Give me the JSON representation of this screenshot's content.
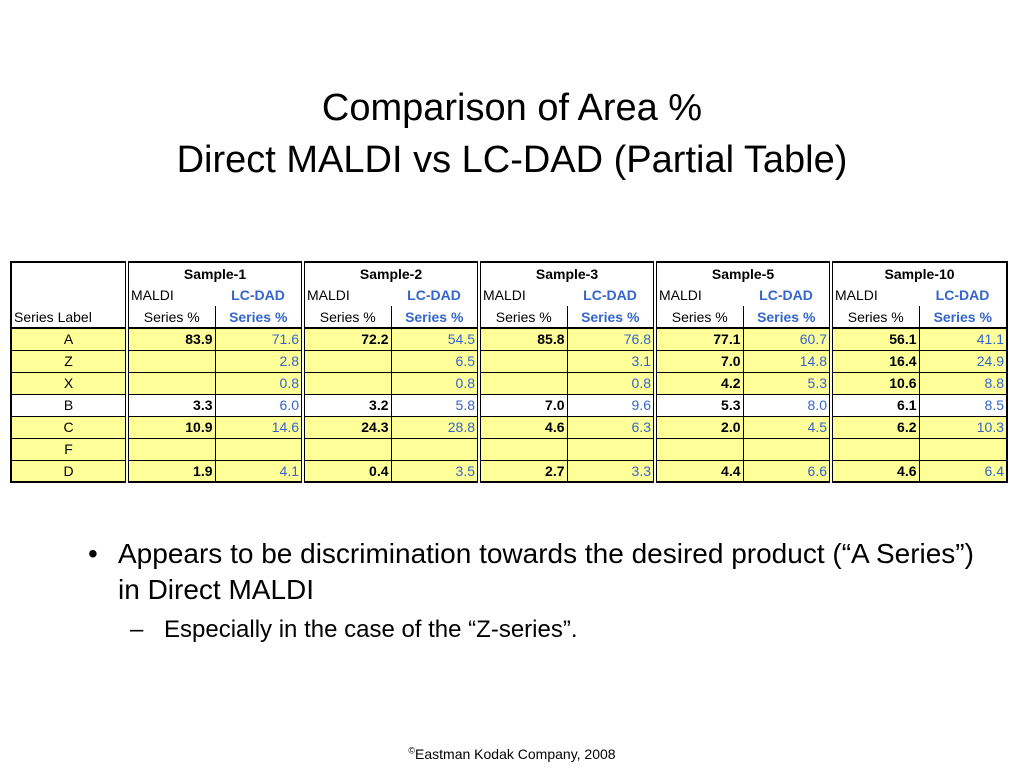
{
  "slide": {
    "title_line1": "Comparison of Area %",
    "title_line2": "Direct MALDI vs LC-DAD (Partial Table)"
  },
  "table": {
    "samples": [
      "Sample-1",
      "Sample-2",
      "Sample-3",
      "Sample-5",
      "Sample-10"
    ],
    "method_maldi": "MALDI",
    "method_lcdad": "LC-DAD",
    "series_header": "Series Label",
    "series_pct": "Series %",
    "colors": {
      "row_highlight": "#ffff99",
      "lc_text": "#3366cc"
    },
    "rows": [
      {
        "label": "A",
        "highlight": true,
        "values": [
          "83.9",
          "71.6",
          "72.2",
          "54.5",
          "85.8",
          "76.8",
          "77.1",
          "60.7",
          "56.1",
          "41.1"
        ]
      },
      {
        "label": "Z",
        "highlight": true,
        "values": [
          "",
          "2.8",
          "",
          "6.5",
          "",
          "3.1",
          "7.0",
          "14.8",
          "16.4",
          "24.9"
        ]
      },
      {
        "label": "X",
        "highlight": true,
        "values": [
          "",
          "0.8",
          "",
          "0.8",
          "",
          "0.8",
          "4.2",
          "5.3",
          "10.6",
          "8.8"
        ]
      },
      {
        "label": "B",
        "highlight": false,
        "values": [
          "3.3",
          "6.0",
          "3.2",
          "5.8",
          "7.0",
          "9.6",
          "5.3",
          "8.0",
          "6.1",
          "8.5"
        ]
      },
      {
        "label": "C",
        "highlight": true,
        "values": [
          "10.9",
          "14.6",
          "24.3",
          "28.8",
          "4.6",
          "6.3",
          "2.0",
          "4.5",
          "6.2",
          "10.3"
        ]
      },
      {
        "label": "F",
        "highlight": true,
        "values": [
          "",
          "",
          "",
          "",
          "",
          "",
          "",
          "",
          "",
          ""
        ]
      },
      {
        "label": "D",
        "highlight": true,
        "values": [
          "1.9",
          "4.1",
          "0.4",
          "3.5",
          "2.7",
          "3.3",
          "4.4",
          "6.6",
          "4.6",
          "6.4"
        ]
      }
    ]
  },
  "bullets": {
    "main": "Appears to be discrimination towards the desired product (“A Series”) in Direct MALDI",
    "sub": "Especially in the case of the “Z-series”."
  },
  "footer": {
    "symbol": "©",
    "text": "Eastman Kodak Company, 2008"
  }
}
